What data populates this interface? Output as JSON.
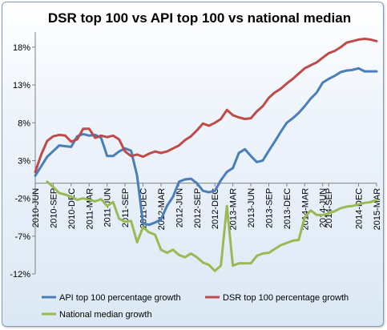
{
  "chart_data": {
    "type": "line",
    "title": "DSR top 100 vs API top 100 vs national median",
    "xlabel": "",
    "ylabel": "",
    "ylim": [
      -12,
      20
    ],
    "yticks": [
      -12,
      -7,
      -2,
      3,
      8,
      13,
      18
    ],
    "ytick_labels": [
      "-12%",
      "-7%",
      "-2%",
      "3%",
      "8%",
      "13%",
      "18%"
    ],
    "xlim": [
      0,
      57
    ],
    "x_tick_labels": [
      "2010-JUN",
      "2010-SEP",
      "2010-DEC",
      "2011-MAR",
      "2011-JUN",
      "2011-SEP",
      "2011-DEC",
      "2012-MAR",
      "2012-JUN",
      "2012-SEP",
      "2012-DEC",
      "2013-MAR",
      "2013-JUN",
      "2013-SEP",
      "2013-DEC",
      "2014-MAR",
      "2014-JUN",
      "2014-SEP",
      "2014-DEC",
      "2015-MAR"
    ],
    "x_tick_positions": [
      0,
      3,
      6,
      9,
      12,
      15,
      18,
      21,
      24,
      27,
      30,
      33,
      36,
      39,
      42,
      45,
      48,
      49,
      54,
      57
    ],
    "grid": false,
    "legend_position": "bottom",
    "series": [
      {
        "name": "API top 100 percentage growth",
        "color": "#4a7ebb",
        "x": [
          0,
          2,
          4,
          6,
          7,
          8,
          9,
          10,
          11,
          12,
          13,
          14,
          15,
          16,
          17,
          18,
          19,
          20,
          21,
          22,
          23,
          24,
          25,
          26,
          27,
          28,
          29,
          30,
          31,
          32,
          33,
          34,
          35,
          36,
          37,
          38,
          39,
          40,
          41,
          42,
          43,
          44,
          45,
          46,
          47,
          48,
          49,
          50,
          51,
          52,
          53,
          54,
          55,
          56,
          57
        ],
        "values": [
          1.0,
          3.5,
          5.0,
          4.8,
          6.2,
          6.5,
          6.3,
          6.4,
          6.0,
          3.6,
          3.6,
          4.2,
          4.6,
          4.3,
          1.0,
          -5.3,
          -5.5,
          -5.2,
          -4.8,
          -3.0,
          -1.8,
          0.2,
          0.5,
          0.6,
          0.0,
          -1.0,
          -1.2,
          -1.0,
          0.4,
          1.5,
          2.0,
          4.0,
          4.5,
          3.6,
          2.8,
          3.0,
          4.3,
          5.5,
          6.8,
          8.0,
          8.6,
          9.3,
          10.2,
          11.2,
          12.0,
          13.3,
          13.8,
          14.2,
          14.7,
          14.9,
          15.0,
          15.2,
          14.8,
          14.8,
          14.8
        ]
      },
      {
        "name": "DSR top 100 percentage growth",
        "color": "#be4b48",
        "x": [
          0,
          1,
          2,
          3,
          4,
          5,
          6,
          7,
          8,
          9,
          10,
          11,
          12,
          13,
          14,
          15,
          16,
          17,
          18,
          19,
          20,
          21,
          22,
          23,
          24,
          25,
          26,
          27,
          28,
          29,
          30,
          31,
          32,
          33,
          34,
          35,
          36,
          37,
          38,
          39,
          40,
          41,
          42,
          43,
          44,
          45,
          46,
          47,
          48,
          49,
          50,
          51,
          52,
          53,
          54,
          55,
          56,
          57
        ],
        "values": [
          1.5,
          3.8,
          5.6,
          6.2,
          6.4,
          6.3,
          5.5,
          5.8,
          7.2,
          7.2,
          6.0,
          6.3,
          6.1,
          6.3,
          5.8,
          4.2,
          3.6,
          3.8,
          3.5,
          3.9,
          4.2,
          4.0,
          4.2,
          4.6,
          5.0,
          5.7,
          6.2,
          7.0,
          7.9,
          7.6,
          8.0,
          8.5,
          9.7,
          9.0,
          8.7,
          8.5,
          8.6,
          9.5,
          10.2,
          11.3,
          12.0,
          12.5,
          13.2,
          13.8,
          14.5,
          15.2,
          15.6,
          16.0,
          16.6,
          17.2,
          17.5,
          18.0,
          18.6,
          18.8,
          19.0,
          19.1,
          19.0,
          18.8
        ]
      },
      {
        "name": "National median growth",
        "color": "#98b954",
        "x": [
          2,
          3,
          4,
          5,
          6,
          7,
          8,
          9,
          10,
          11,
          12,
          13,
          14,
          15,
          16,
          17,
          18,
          19,
          20,
          21,
          22,
          23,
          24,
          25,
          26,
          27,
          28,
          29,
          30,
          31,
          32,
          33,
          34,
          35,
          36,
          37,
          38,
          39,
          40,
          41,
          42,
          43,
          44,
          45,
          46,
          47,
          48,
          49,
          50,
          51,
          52,
          53,
          54,
          55,
          56,
          57
        ],
        "values": [
          0.2,
          -0.5,
          -1.3,
          -1.5,
          -1.8,
          -2.2,
          -2.0,
          -2.2,
          -2.4,
          -2.1,
          -3.0,
          -2.5,
          -4.7,
          -5.1,
          -5.0,
          -7.8,
          -5.8,
          -6.5,
          -6.8,
          -8.8,
          -9.2,
          -8.8,
          -9.5,
          -9.8,
          -9.3,
          -9.8,
          -10.5,
          -10.8,
          -11.6,
          -10.9,
          -3.0,
          -10.9,
          -10.6,
          -10.6,
          -10.6,
          -9.6,
          -9.3,
          -9.2,
          -8.7,
          -8.2,
          -7.9,
          -7.6,
          -7.5,
          -4.5,
          -3.6,
          -4.2,
          -4.2,
          -4.0,
          -3.7,
          -3.3,
          -3.1,
          -3.0,
          -2.8,
          -2.6,
          -2.5,
          -2.2
        ]
      }
    ]
  }
}
